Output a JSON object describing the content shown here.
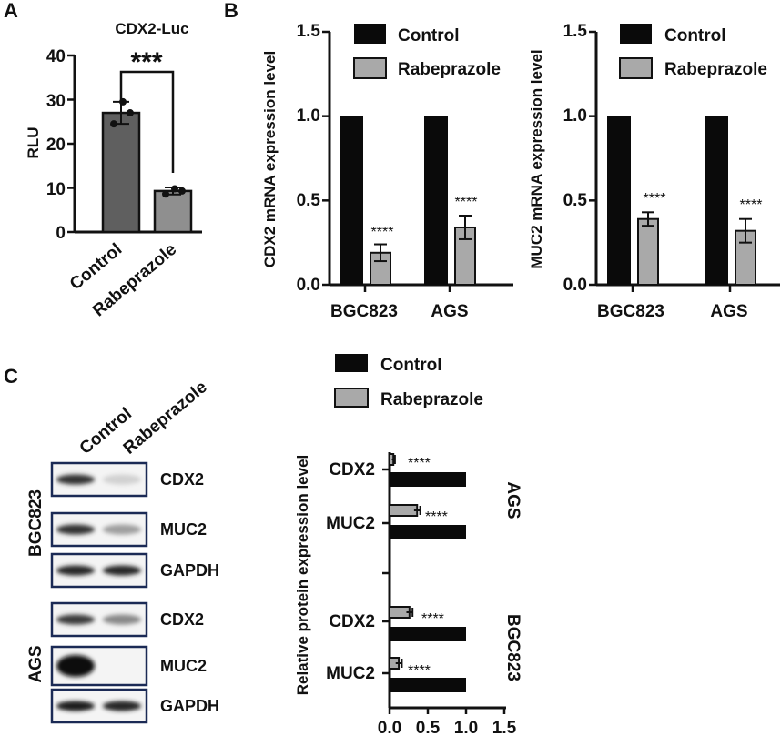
{
  "panels": {
    "a": "A",
    "b": "B",
    "c": "C"
  },
  "chart_data": [
    {
      "id": "A",
      "type": "bar",
      "title": "CDX2-Luc",
      "ylabel": "RLU",
      "xlabel": "",
      "categories": [
        "Control",
        "Rabeprazole"
      ],
      "values": [
        27,
        9.3
      ],
      "errors": [
        2.5,
        0.8
      ],
      "points": [
        [
          24.5,
          29.5,
          27.0
        ],
        [
          8.6,
          9.8,
          9.3
        ]
      ],
      "colors": [
        "#5f5f5f",
        "#8f8f8f"
      ],
      "ylim": [
        0,
        40
      ],
      "yticks": [
        "0",
        "10",
        "20",
        "30",
        "40"
      ],
      "significance": "***"
    },
    {
      "id": "B1",
      "type": "bar",
      "ylabel": "CDX2 mRNA expression level",
      "categories": [
        "BGC823",
        "AGS"
      ],
      "series": [
        {
          "name": "Control",
          "values": [
            1.0,
            1.0
          ],
          "errors": [
            0,
            0
          ],
          "color": "#0a0a0a"
        },
        {
          "name": "Rabeprazole",
          "values": [
            0.19,
            0.34
          ],
          "errors": [
            0.05,
            0.07
          ],
          "color": "#a9a9a9"
        }
      ],
      "significance": [
        "****",
        "****"
      ],
      "ylim": [
        0,
        1.5
      ],
      "yticks": [
        "0.0",
        "0.5",
        "1.0",
        "1.5"
      ],
      "legend": "top-right"
    },
    {
      "id": "B2",
      "type": "bar",
      "ylabel": "MUC2 mRNA expression level",
      "categories": [
        "BGC823",
        "AGS"
      ],
      "series": [
        {
          "name": "Control",
          "values": [
            1.0,
            1.0
          ],
          "errors": [
            0,
            0
          ],
          "color": "#0a0a0a"
        },
        {
          "name": "Rabeprazole",
          "values": [
            0.39,
            0.32
          ],
          "errors": [
            0.04,
            0.07
          ],
          "color": "#a9a9a9"
        }
      ],
      "significance": [
        "****",
        "****"
      ],
      "ylim": [
        0,
        1.5
      ],
      "yticks": [
        "0.0",
        "0.5",
        "1.0",
        "1.5"
      ],
      "legend": "top-right"
    },
    {
      "id": "C",
      "type": "bar",
      "orientation": "horizontal",
      "ylabel": "Relative protein expression level",
      "legend": "top",
      "groups": [
        {
          "name": "AGS",
          "categories": [
            "CDX2",
            "MUC2"
          ],
          "control": [
            1.0,
            1.0
          ],
          "rabeprazole": [
            0.05,
            0.36
          ],
          "errors": [
            0.02,
            0.04
          ],
          "significance": [
            "****",
            "****"
          ]
        },
        {
          "name": "BGC823",
          "categories": [
            "CDX2",
            "MUC2"
          ],
          "control": [
            1.0,
            1.0
          ],
          "rabeprazole": [
            0.26,
            0.12
          ],
          "errors": [
            0.04,
            0.04
          ],
          "significance": [
            "****",
            "****"
          ]
        }
      ],
      "series": [
        {
          "name": "Control",
          "color": "#0a0a0a"
        },
        {
          "name": "Rabeprazole",
          "color": "#a9a9a9"
        }
      ],
      "xlim": [
        0,
        1.5
      ],
      "xticks": [
        "0.0",
        "0.5",
        "1.0",
        "1.5"
      ]
    }
  ],
  "blot": {
    "columns": [
      "Control",
      "Rabeprazole"
    ],
    "groups": [
      {
        "name": "BGC823",
        "rows": [
          {
            "label": "CDX2",
            "control": 0.85,
            "rabeprazole": 0.12
          },
          {
            "label": "MUC2",
            "control": 0.85,
            "rabeprazole": 0.35
          },
          {
            "label": "GAPDH",
            "control": 0.9,
            "rabeprazole": 0.9
          }
        ]
      },
      {
        "name": "AGS",
        "rows": [
          {
            "label": "CDX2",
            "control": 0.8,
            "rabeprazole": 0.45
          },
          {
            "label": "MUC2",
            "control": 1.0,
            "rabeprazole": 0.0
          },
          {
            "label": "GAPDH",
            "control": 0.95,
            "rabeprazole": 0.9
          }
        ]
      }
    ]
  }
}
